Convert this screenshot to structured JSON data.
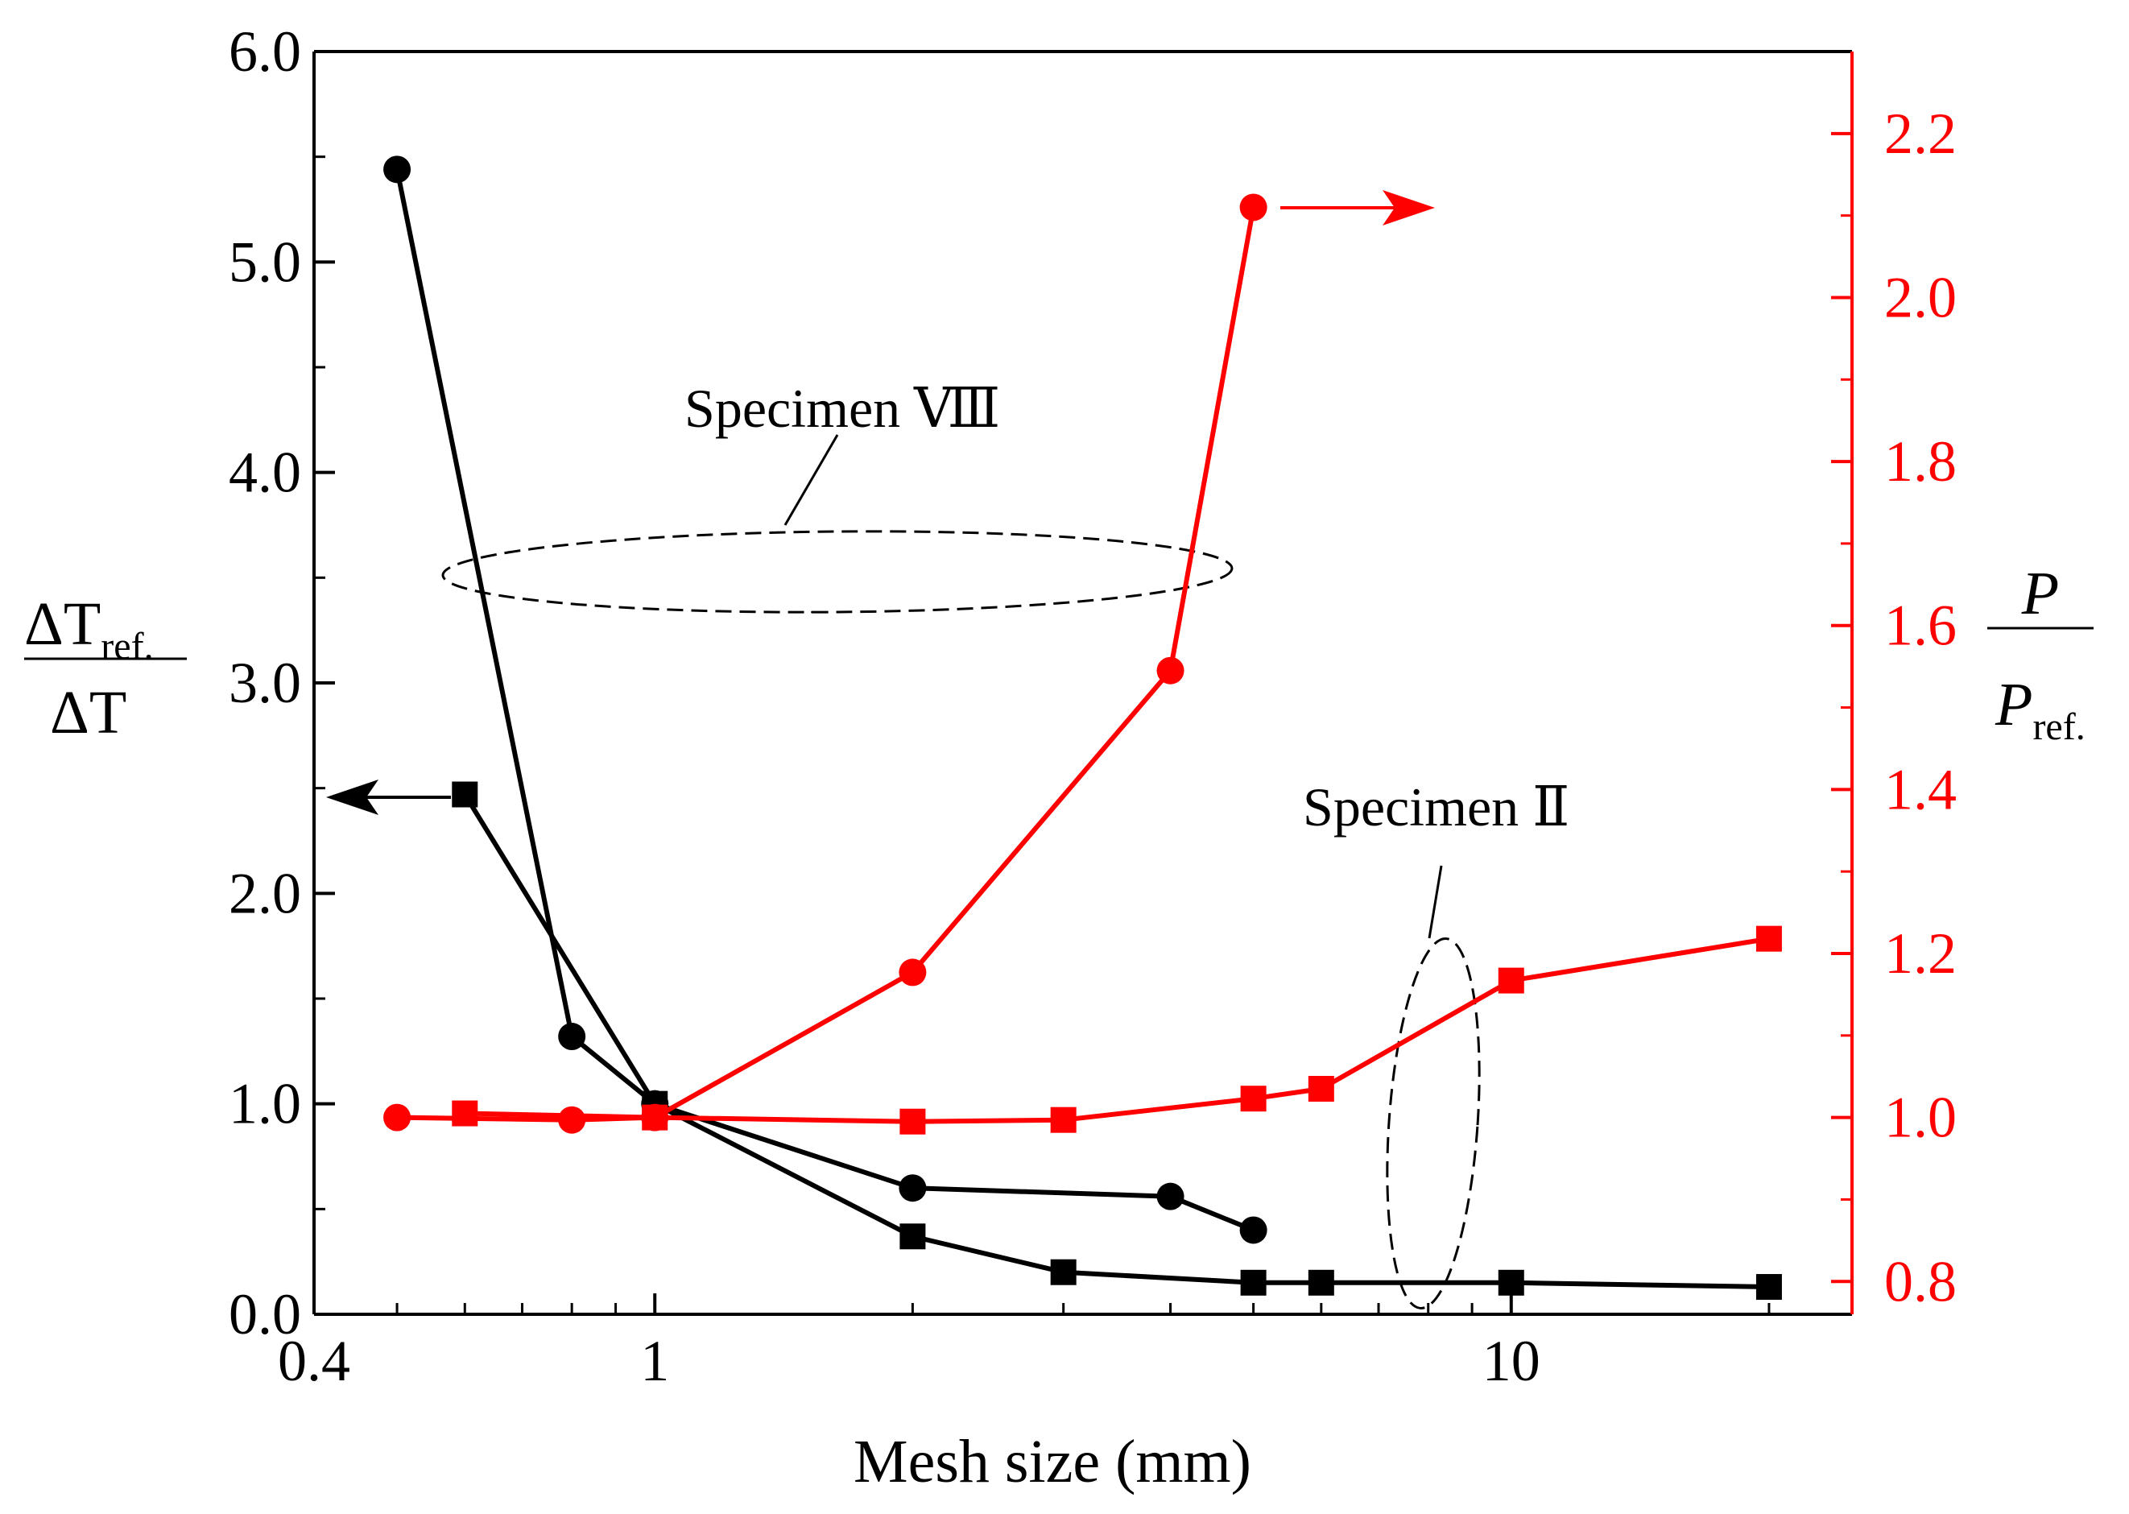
{
  "chart_data": {
    "type": "line",
    "xlabel": "Mesh size  (mm)",
    "x_scale": "log",
    "xlim": [
      0.4,
      25
    ],
    "x_ticks": [
      0.4,
      1,
      10
    ],
    "x_tick_labels": [
      "0.4",
      "1",
      "10"
    ],
    "y_left": {
      "label_numerator": "ΔT",
      "label_numerator_sub": "ref.",
      "label_denominator": "ΔT",
      "ylim": [
        0,
        6
      ],
      "ticks": [
        0,
        1,
        2,
        3,
        4,
        5,
        6
      ],
      "tick_labels": [
        "0.0",
        "1.0",
        "2.0",
        "3.0",
        "4.0",
        "5.0",
        "6.0"
      ],
      "color": "#000000"
    },
    "y_right": {
      "label_numerator": "P",
      "label_denominator": "P",
      "label_denominator_sub": "ref.",
      "ylim": [
        0.76,
        2.3
      ],
      "ticks": [
        0.8,
        1.0,
        1.2,
        1.4,
        1.6,
        1.8,
        2.0,
        2.2
      ],
      "tick_labels": [
        "0.8",
        "1.0",
        "1.2",
        "1.4",
        "1.6",
        "1.8",
        "2.0",
        "2.2"
      ],
      "color": "#ff0000"
    },
    "series": [
      {
        "name": "Specimen VIII ΔTref/ΔT",
        "axis": "left",
        "marker": "circle",
        "color": "#000000",
        "x": [
          0.5,
          0.8,
          1,
          2,
          4,
          5
        ],
        "y": [
          5.44,
          1.32,
          1.0,
          0.6,
          0.56,
          0.4
        ]
      },
      {
        "name": "Specimen II ΔTref/ΔT",
        "axis": "left",
        "marker": "square",
        "color": "#000000",
        "x": [
          0.6,
          1,
          2,
          3,
          5,
          6,
          10,
          20
        ],
        "y": [
          2.47,
          1.0,
          0.37,
          0.2,
          0.15,
          0.15,
          0.15,
          0.13
        ]
      },
      {
        "name": "Specimen VIII P/Pref",
        "axis": "right",
        "marker": "circle",
        "color": "#ff0000",
        "x": [
          0.5,
          0.8,
          1,
          2,
          4,
          5
        ],
        "y": [
          1.0,
          0.997,
          1.0,
          1.177,
          1.545,
          2.11
        ]
      },
      {
        "name": "Specimen II P/Pref",
        "axis": "right",
        "marker": "square",
        "color": "#ff0000",
        "x": [
          0.6,
          1,
          2,
          3,
          5,
          6,
          10,
          20
        ],
        "y": [
          1.005,
          1.0,
          0.995,
          0.997,
          1.023,
          1.035,
          1.167,
          1.218
        ]
      }
    ],
    "annotations": [
      {
        "text": "Specimen Ⅷ",
        "target": "Specimen VIII curves"
      },
      {
        "text": "Specimen Ⅱ",
        "target": "Specimen II curves"
      }
    ]
  }
}
